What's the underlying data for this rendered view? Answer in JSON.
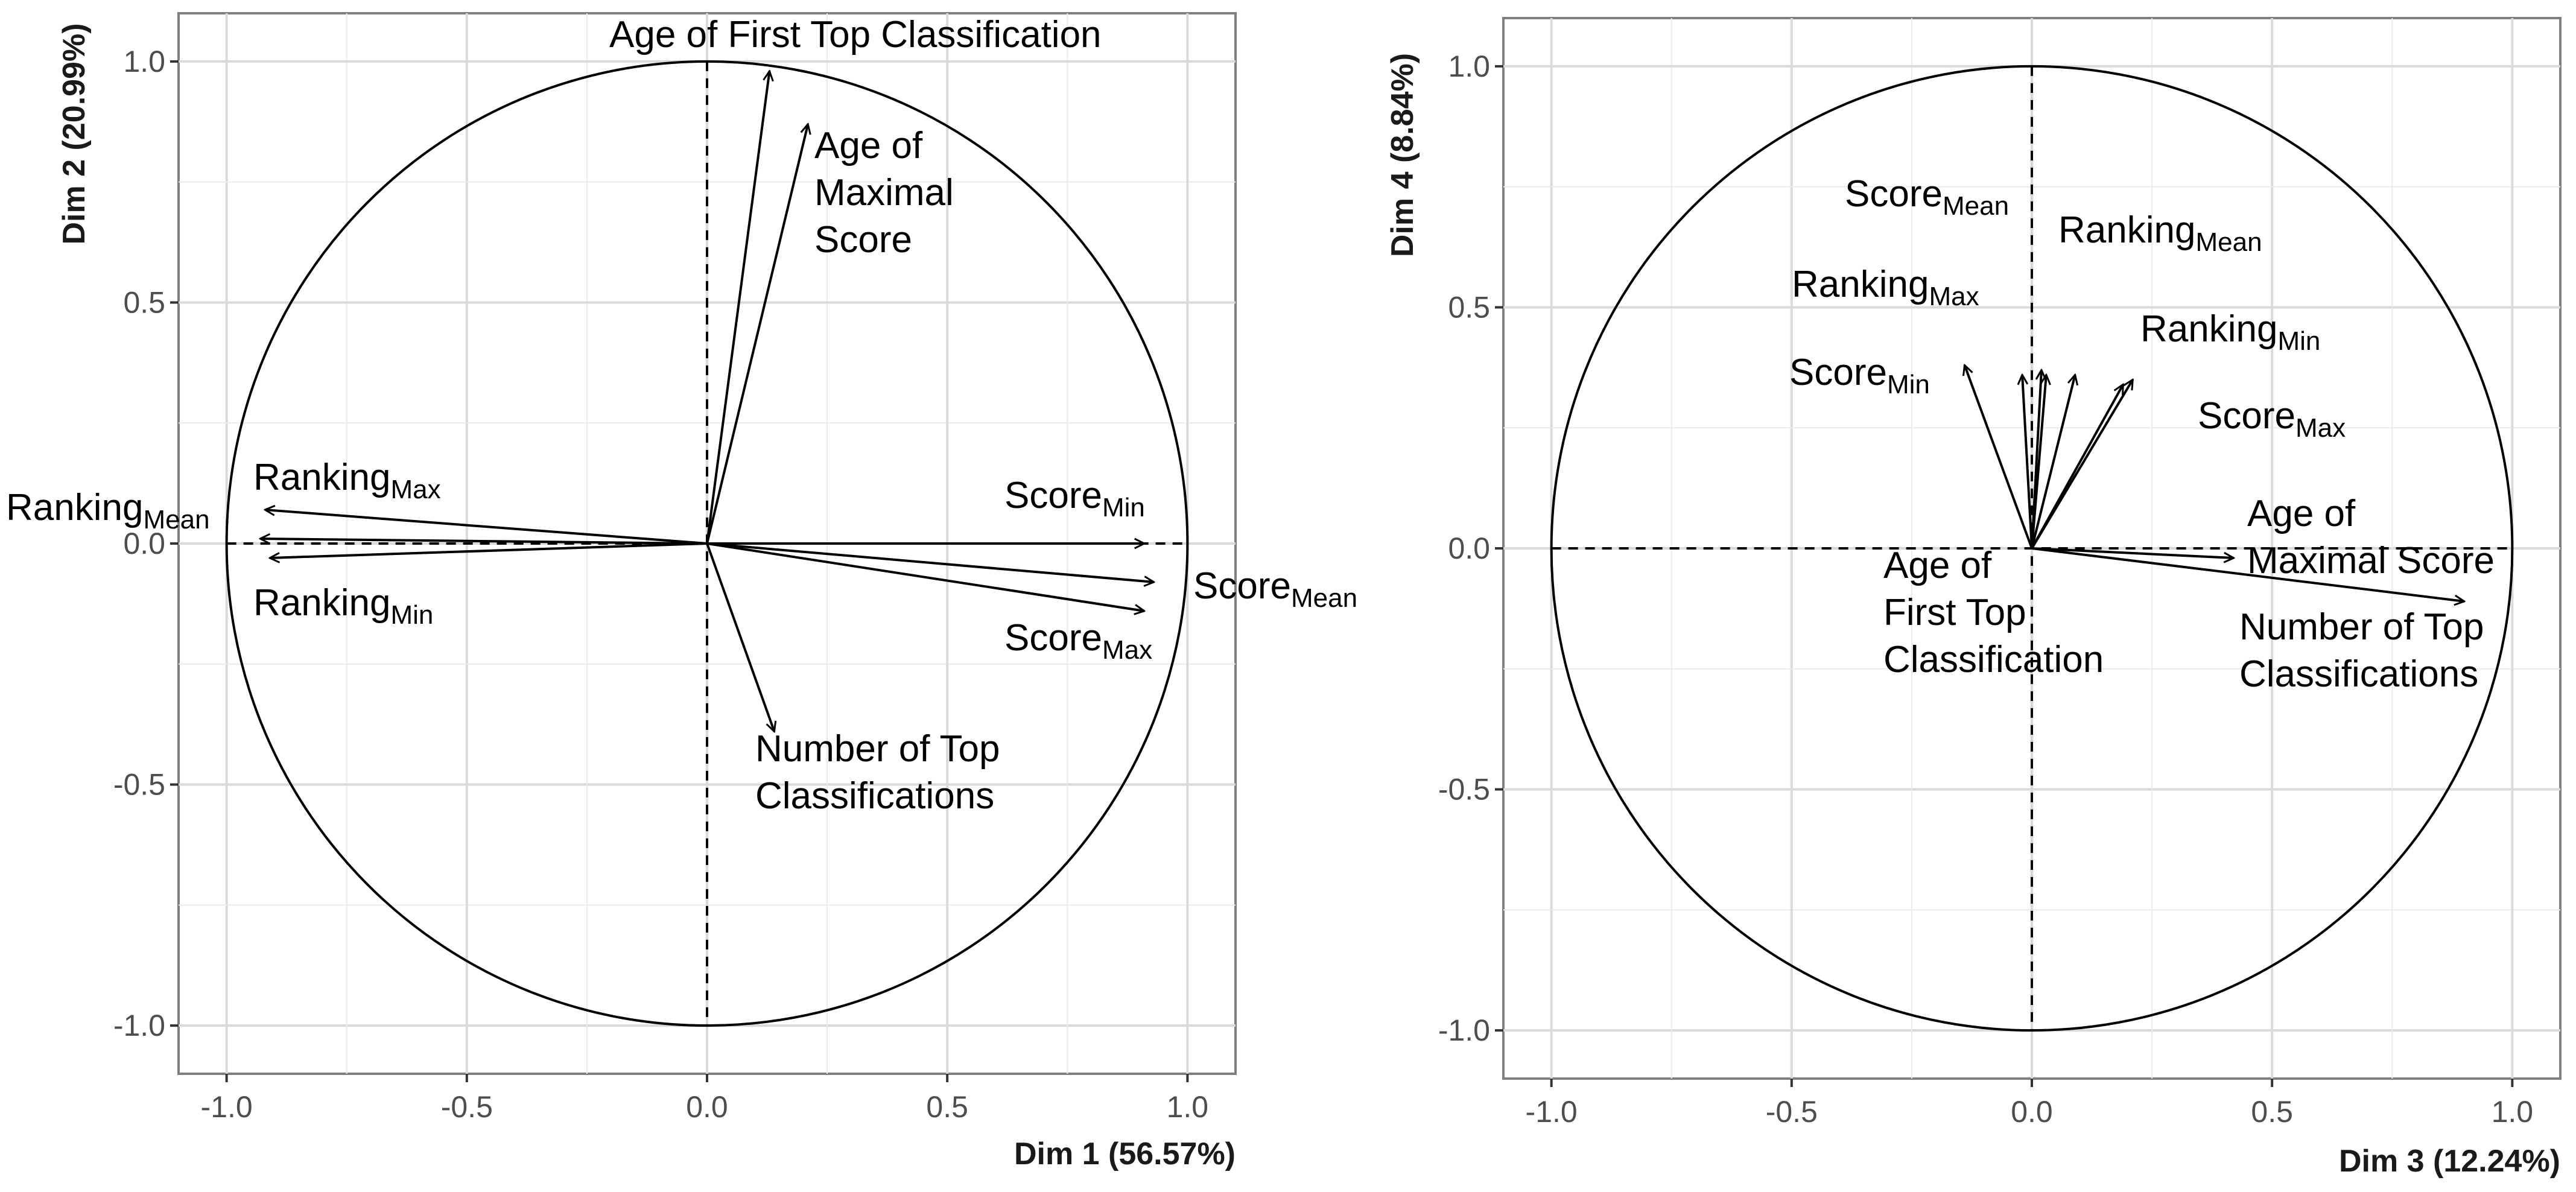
{
  "chart_data": [
    {
      "type": "scatter",
      "title": "",
      "xlabel": "Dim 1 (56.57%)",
      "ylabel": "Dim 2 (20.99%)",
      "xlim": [
        -1.1,
        1.1
      ],
      "ylim": [
        -1.1,
        1.1
      ],
      "xticks": [
        "-1.0",
        "-0.5",
        "0.0",
        "0.5",
        "1.0"
      ],
      "yticks": [
        "-1.0",
        "-0.5",
        "0.0",
        "0.5",
        "1.0"
      ],
      "grid": true,
      "unit_circle": true,
      "vectors": [
        {
          "label": "Age of First Top Classification",
          "x": 0.13,
          "y": 0.98
        },
        {
          "label": "Age of Maximal Score",
          "x": 0.21,
          "y": 0.87
        },
        {
          "label": "Ranking",
          "sub": "Max",
          "x": -0.92,
          "y": 0.07
        },
        {
          "label": "Ranking",
          "sub": "Mean",
          "x": -0.93,
          "y": 0.01
        },
        {
          "label": "Ranking",
          "sub": "Min",
          "x": -0.91,
          "y": -0.03
        },
        {
          "label": "Score",
          "sub": "Min",
          "x": 0.91,
          "y": 0.0
        },
        {
          "label": "Score",
          "sub": "Mean",
          "x": 0.93,
          "y": -0.08
        },
        {
          "label": "Score",
          "sub": "Max",
          "x": 0.91,
          "y": -0.14
        },
        {
          "label": "Number of Top Classifications",
          "x": 0.14,
          "y": -0.39
        }
      ]
    },
    {
      "type": "scatter",
      "title": "",
      "xlabel": "Dim 3 (12.24%)",
      "ylabel": "Dim 4 (8.84%)",
      "xlim": [
        -1.1,
        1.1
      ],
      "ylim": [
        -1.1,
        1.1
      ],
      "xticks": [
        "-1.0",
        "-0.5",
        "0.0",
        "0.5",
        "1.0"
      ],
      "yticks": [
        "-1.0",
        "-0.5",
        "0.0",
        "0.5",
        "1.0"
      ],
      "grid": true,
      "unit_circle": true,
      "vectors": [
        {
          "label": "Score",
          "sub": "Mean",
          "x": 0.02,
          "y": 0.37
        },
        {
          "label": "Ranking",
          "sub": "Mean",
          "x": 0.09,
          "y": 0.36
        },
        {
          "label": "Ranking",
          "sub": "Max",
          "x": -0.02,
          "y": 0.36
        },
        {
          "label": "Ranking",
          "sub": "Min",
          "x": 0.19,
          "y": 0.34
        },
        {
          "label": "Score",
          "sub": "Min",
          "x": -0.14,
          "y": 0.38
        },
        {
          "label": "Score",
          "sub": "Max",
          "x": 0.21,
          "y": 0.35
        },
        {
          "label": "Age of First Top Classification",
          "x": 0.03,
          "y": 0.36
        },
        {
          "label": "Age of Maximal Score",
          "x": 0.42,
          "y": -0.02
        },
        {
          "label": "Number of Top Classifications",
          "x": 0.9,
          "y": -0.11
        }
      ]
    }
  ]
}
